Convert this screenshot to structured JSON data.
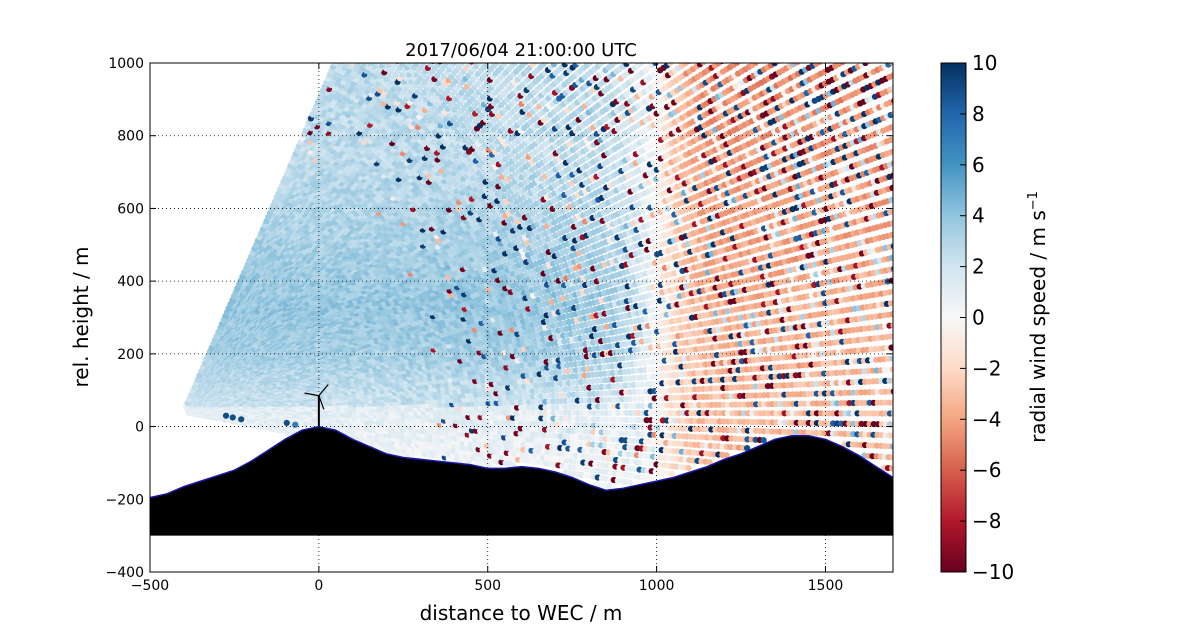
{
  "chart_data": {
    "type": "scatter",
    "title": "2017/06/04 21:00:00 UTC",
    "xlabel": "distance to WEC / m",
    "ylabel": "rel. height / m",
    "xlim": [
      -500,
      1700
    ],
    "ylim": [
      -400,
      1000
    ],
    "xticks": [
      -500,
      0,
      500,
      1000,
      1500
    ],
    "yticks": [
      -400,
      -200,
      0,
      200,
      400,
      600,
      800,
      1000
    ],
    "xtick_labels": [
      "−500",
      "0",
      "500",
      "1000",
      "1500"
    ],
    "ytick_labels": [
      "−400",
      "−200",
      "0",
      "200",
      "400",
      "600",
      "800",
      "1000"
    ],
    "grid": true,
    "scan_origin": [
      -400,
      40
    ],
    "scan_fan_angles_deg": [
      -10,
      65
    ],
    "wind_speed_model": "negative beyond x=1000, positive toward x=-400; noisy at range",
    "terrain": {
      "x": [
        -500,
        -450,
        -400,
        -350,
        -300,
        -250,
        -200,
        -150,
        -100,
        -50,
        0,
        50,
        100,
        150,
        200,
        250,
        300,
        350,
        400,
        450,
        500,
        550,
        600,
        650,
        700,
        750,
        800,
        850,
        900,
        950,
        1000,
        1050,
        1100,
        1150,
        1200,
        1250,
        1300,
        1350,
        1400,
        1450,
        1500,
        1550,
        1600,
        1650,
        1700
      ],
      "y": [
        -195,
        -185,
        -165,
        -150,
        -135,
        -120,
        -95,
        -65,
        -35,
        -10,
        0,
        -10,
        -35,
        -55,
        -75,
        -85,
        -90,
        -95,
        -100,
        -105,
        -115,
        -115,
        -110,
        -115,
        -125,
        -140,
        -160,
        -175,
        -170,
        -160,
        -150,
        -140,
        -125,
        -110,
        -90,
        -75,
        -55,
        -35,
        -25,
        -25,
        -35,
        -55,
        -80,
        -110,
        -140
      ],
      "base": -300,
      "color": "#000000",
      "edge_color": "#1a1aa8"
    },
    "turbine": {
      "x": 0,
      "hub_height": 85,
      "rotor_radius": 40
    },
    "colorbar": {
      "label": "radial wind speed / m s",
      "label_superscript": "−1",
      "range": [
        -10,
        10
      ],
      "ticks": [
        10,
        8,
        6,
        4,
        2,
        0,
        -2,
        -4,
        -6,
        -8,
        -10
      ],
      "tick_labels": [
        "10",
        "8",
        "6",
        "4",
        "2",
        "0",
        "−2",
        "−4",
        "−6",
        "−8",
        "−10"
      ],
      "colormap": "RdBu",
      "colors": [
        "#67001f",
        "#b2182b",
        "#d6604d",
        "#f4a582",
        "#fddbc7",
        "#f7f7f7",
        "#d1e5f0",
        "#92c5de",
        "#4393c3",
        "#2166ac",
        "#053061"
      ]
    }
  }
}
